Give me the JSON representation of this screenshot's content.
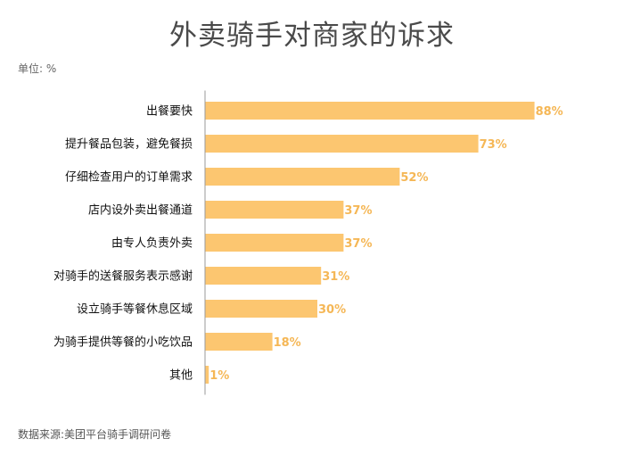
{
  "title": "外卖骑手对商家的诉求",
  "unit_label": "单位: %",
  "source": "数据来源:美团平台骑手调研问卷",
  "colors": {
    "bar": "#fcc670",
    "value_label": "#f5b756",
    "axis": "#9a9a9a"
  },
  "chart_data": {
    "type": "bar",
    "orientation": "horizontal",
    "categories": [
      "出餐要快",
      "提升餐品包装，避免餐损",
      "仔细检查用户的订单需求",
      "店内设外卖出餐通道",
      "由专人负责外卖",
      "对骑手的送餐服务表示感谢",
      "设立骑手等餐休息区域",
      "为骑手提供等餐的小吃饮品",
      "其他"
    ],
    "values": [
      88,
      73,
      52,
      37,
      37,
      31,
      30,
      18,
      1
    ],
    "value_labels": [
      "88%",
      "73%",
      "52%",
      "37%",
      "37%",
      "31%",
      "30%",
      "18%",
      "1%"
    ],
    "xlim": [
      0,
      100
    ],
    "grid": false,
    "legend": "none"
  }
}
